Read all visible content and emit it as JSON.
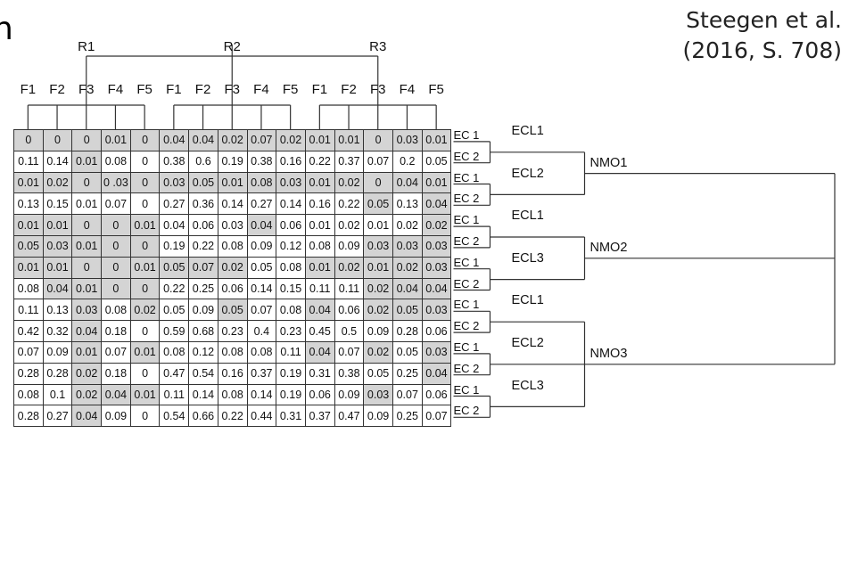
{
  "title_fragment": "n",
  "citation": {
    "line1": "Steegen et al.",
    "line2": "(2016, S. 708)"
  },
  "top_groups": [
    "R1",
    "R2",
    "R3"
  ],
  "column_headers": [
    "F1",
    "F2",
    "F3",
    "F4",
    "F5",
    "F1",
    "F2",
    "F3",
    "F4",
    "F5",
    "F1",
    "F2",
    "F3",
    "F4",
    "F5"
  ],
  "rows": [
    {
      "ec": "EC 1",
      "cells": [
        [
          "0",
          true
        ],
        [
          "0",
          true
        ],
        [
          "0",
          true
        ],
        [
          "0.01",
          true
        ],
        [
          "0",
          true
        ],
        [
          "0.04",
          true
        ],
        [
          "0.04",
          true
        ],
        [
          "0.02",
          true
        ],
        [
          "0.07",
          true
        ],
        [
          "0.02",
          true
        ],
        [
          "0.01",
          true
        ],
        [
          "0.01",
          true
        ],
        [
          "0",
          true
        ],
        [
          "0.03",
          true
        ],
        [
          "0.01",
          true
        ]
      ]
    },
    {
      "ec": "EC 2",
      "cells": [
        [
          "0.11",
          false
        ],
        [
          "0.14",
          false
        ],
        [
          "0.01",
          true
        ],
        [
          "0.08",
          false
        ],
        [
          "0",
          false
        ],
        [
          "0.38",
          false
        ],
        [
          "0.6",
          false
        ],
        [
          "0.19",
          false
        ],
        [
          "0.38",
          false
        ],
        [
          "0.16",
          false
        ],
        [
          "0.22",
          false
        ],
        [
          "0.37",
          false
        ],
        [
          "0.07",
          false
        ],
        [
          "0.2",
          false
        ],
        [
          "0.05",
          false
        ]
      ]
    },
    {
      "ec": "EC 1",
      "cells": [
        [
          "0.01",
          true
        ],
        [
          "0.02",
          true
        ],
        [
          "0",
          true
        ],
        [
          "0 .03",
          true
        ],
        [
          "0",
          true
        ],
        [
          "0.03",
          true
        ],
        [
          "0.05",
          true
        ],
        [
          "0.01",
          true
        ],
        [
          "0.08",
          true
        ],
        [
          "0.03",
          true
        ],
        [
          "0.01",
          true
        ],
        [
          "0.02",
          true
        ],
        [
          "0",
          true
        ],
        [
          "0.04",
          true
        ],
        [
          "0.01",
          true
        ]
      ]
    },
    {
      "ec": "EC 2",
      "cells": [
        [
          "0.13",
          false
        ],
        [
          "0.15",
          false
        ],
        [
          "0.01",
          false
        ],
        [
          "0.07",
          false
        ],
        [
          "0",
          false
        ],
        [
          "0.27",
          false
        ],
        [
          "0.36",
          false
        ],
        [
          "0.14",
          false
        ],
        [
          "0.27",
          false
        ],
        [
          "0.14",
          false
        ],
        [
          "0.16",
          false
        ],
        [
          "0.22",
          false
        ],
        [
          "0.05",
          true
        ],
        [
          "0.13",
          false
        ],
        [
          "0.04",
          true
        ]
      ]
    },
    {
      "ec": "EC 1",
      "cells": [
        [
          "0.01",
          true
        ],
        [
          "0.01",
          true
        ],
        [
          "0",
          true
        ],
        [
          "0",
          true
        ],
        [
          "0.01",
          true
        ],
        [
          "0.04",
          false
        ],
        [
          "0.06",
          false
        ],
        [
          "0.03",
          false
        ],
        [
          "0.04",
          true
        ],
        [
          "0.06",
          false
        ],
        [
          "0.01",
          false
        ],
        [
          "0.02",
          false
        ],
        [
          "0.01",
          false
        ],
        [
          "0.02",
          false
        ],
        [
          "0.02",
          true
        ]
      ]
    },
    {
      "ec": "EC 2",
      "cells": [
        [
          "0.05",
          true
        ],
        [
          "0.03",
          true
        ],
        [
          "0.01",
          true
        ],
        [
          "0",
          true
        ],
        [
          "0",
          true
        ],
        [
          "0.19",
          false
        ],
        [
          "0.22",
          false
        ],
        [
          "0.08",
          false
        ],
        [
          "0.09",
          false
        ],
        [
          "0.12",
          false
        ],
        [
          "0.08",
          false
        ],
        [
          "0.09",
          false
        ],
        [
          "0.03",
          true
        ],
        [
          "0.03",
          true
        ],
        [
          "0.03",
          true
        ]
      ]
    },
    {
      "ec": "EC 1",
      "cells": [
        [
          "0.01",
          true
        ],
        [
          "0.01",
          true
        ],
        [
          "0",
          true
        ],
        [
          "0",
          true
        ],
        [
          "0.01",
          true
        ],
        [
          "0.05",
          true
        ],
        [
          "0.07",
          true
        ],
        [
          "0.02",
          true
        ],
        [
          "0.05",
          false
        ],
        [
          "0.08",
          false
        ],
        [
          "0.01",
          true
        ],
        [
          "0.02",
          true
        ],
        [
          "0.01",
          true
        ],
        [
          "0.02",
          true
        ],
        [
          "0.03",
          true
        ]
      ]
    },
    {
      "ec": "EC 2",
      "cells": [
        [
          "0.08",
          false
        ],
        [
          "0.04",
          true
        ],
        [
          "0.01",
          true
        ],
        [
          "0",
          true
        ],
        [
          "0",
          true
        ],
        [
          "0.22",
          false
        ],
        [
          "0.25",
          false
        ],
        [
          "0.06",
          false
        ],
        [
          "0.14",
          false
        ],
        [
          "0.15",
          false
        ],
        [
          "0.11",
          false
        ],
        [
          "0.11",
          false
        ],
        [
          "0.02",
          true
        ],
        [
          "0.04",
          true
        ],
        [
          "0.04",
          true
        ]
      ]
    },
    {
      "ec": "EC 1",
      "cells": [
        [
          "0.11",
          false
        ],
        [
          "0.13",
          false
        ],
        [
          "0.03",
          true
        ],
        [
          "0.08",
          false
        ],
        [
          "0.02",
          true
        ],
        [
          "0.05",
          false
        ],
        [
          "0.09",
          false
        ],
        [
          "0.05",
          true
        ],
        [
          "0.07",
          false
        ],
        [
          "0.08",
          false
        ],
        [
          "0.04",
          true
        ],
        [
          "0.06",
          false
        ],
        [
          "0.02",
          true
        ],
        [
          "0.05",
          true
        ],
        [
          "0.03",
          true
        ]
      ]
    },
    {
      "ec": "EC 2",
      "cells": [
        [
          "0.42",
          false
        ],
        [
          "0.32",
          false
        ],
        [
          "0.04",
          true
        ],
        [
          "0.18",
          false
        ],
        [
          "0",
          false
        ],
        [
          "0.59",
          false
        ],
        [
          "0.68",
          false
        ],
        [
          "0.23",
          false
        ],
        [
          "0.4",
          false
        ],
        [
          "0.23",
          false
        ],
        [
          "0.45",
          false
        ],
        [
          "0.5",
          false
        ],
        [
          "0.09",
          false
        ],
        [
          "0.28",
          false
        ],
        [
          "0.06",
          false
        ]
      ]
    },
    {
      "ec": "EC 1",
      "cells": [
        [
          "0.07",
          false
        ],
        [
          "0.09",
          false
        ],
        [
          "0.01",
          true
        ],
        [
          "0.07",
          false
        ],
        [
          "0.01",
          true
        ],
        [
          "0.08",
          false
        ],
        [
          "0.12",
          false
        ],
        [
          "0.08",
          false
        ],
        [
          "0.08",
          false
        ],
        [
          "0.11",
          false
        ],
        [
          "0.04",
          true
        ],
        [
          "0.07",
          false
        ],
        [
          "0.02",
          true
        ],
        [
          "0.05",
          false
        ],
        [
          "0.03",
          true
        ]
      ]
    },
    {
      "ec": "EC 2",
      "cells": [
        [
          "0.28",
          false
        ],
        [
          "0.28",
          false
        ],
        [
          "0.02",
          true
        ],
        [
          "0.18",
          false
        ],
        [
          "0",
          false
        ],
        [
          "0.47",
          false
        ],
        [
          "0.54",
          false
        ],
        [
          "0.16",
          false
        ],
        [
          "0.37",
          false
        ],
        [
          "0.19",
          false
        ],
        [
          "0.31",
          false
        ],
        [
          "0.38",
          false
        ],
        [
          "0.05",
          false
        ],
        [
          "0.25",
          false
        ],
        [
          "0.04",
          true
        ]
      ]
    },
    {
      "ec": "EC 1",
      "cells": [
        [
          "0.08",
          false
        ],
        [
          "0.1",
          false
        ],
        [
          "0.02",
          true
        ],
        [
          "0.04",
          true
        ],
        [
          "0.01",
          true
        ],
        [
          "0.11",
          false
        ],
        [
          "0.14",
          false
        ],
        [
          "0.08",
          false
        ],
        [
          "0.14",
          false
        ],
        [
          "0.19",
          false
        ],
        [
          "0.06",
          false
        ],
        [
          "0.09",
          false
        ],
        [
          "0.03",
          true
        ],
        [
          "0.07",
          false
        ],
        [
          "0.06",
          false
        ]
      ]
    },
    {
      "ec": "EC 2",
      "cells": [
        [
          "0.28",
          false
        ],
        [
          "0.27",
          false
        ],
        [
          "0.04",
          true
        ],
        [
          "0.09",
          false
        ],
        [
          "0",
          false
        ],
        [
          "0.54",
          false
        ],
        [
          "0.66",
          false
        ],
        [
          "0.22",
          false
        ],
        [
          "0.44",
          false
        ],
        [
          "0.31",
          false
        ],
        [
          "0.37",
          false
        ],
        [
          "0.47",
          false
        ],
        [
          "0.09",
          false
        ],
        [
          "0.25",
          false
        ],
        [
          "0.07",
          false
        ]
      ]
    }
  ],
  "ecl_labels": [
    "ECL1",
    "ECL2",
    "ECL1",
    "ECL3",
    "ECL1",
    "ECL2",
    "ECL3"
  ],
  "nmo_labels": [
    "NMO1",
    "NMO2",
    "NMO3"
  ],
  "colors": {
    "shaded_cell": "#d4d4d4",
    "lines": "#333333"
  }
}
